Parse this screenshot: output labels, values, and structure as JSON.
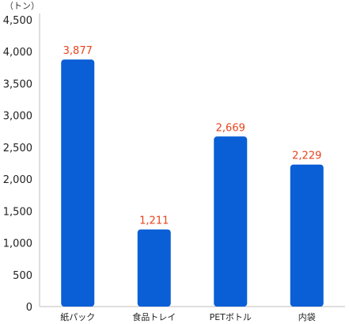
{
  "chart_data": {
    "type": "bar",
    "unit_label": "（トン）",
    "categories": [
      "紙パック",
      "食品トレイ",
      "PETボトル",
      "内袋"
    ],
    "values": [
      3877,
      1211,
      2669,
      2229
    ],
    "data_labels": [
      "3,877",
      "1,211",
      "2,669",
      "2,229"
    ],
    "yticks": [
      "0",
      "500",
      "1,000",
      "1,500",
      "2,000",
      "2,500",
      "3,000",
      "3,500",
      "4,000",
      "4,500"
    ],
    "ylim": [
      0,
      4500
    ],
    "grid": false,
    "bar_color": "#0a5fd6",
    "label_color": "#e8431d"
  }
}
